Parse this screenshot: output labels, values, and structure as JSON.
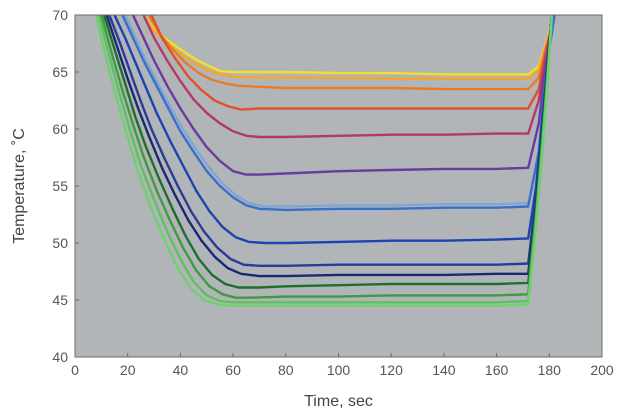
{
  "chart_data": {
    "type": "line",
    "xlabel": "Time, sec",
    "ylabel": "Temperature, ˚C",
    "xlim": [
      0,
      200
    ],
    "ylim": [
      40,
      70
    ],
    "x_ticks": [
      0,
      20,
      40,
      60,
      80,
      100,
      120,
      140,
      160,
      180,
      200
    ],
    "y_ticks": [
      40,
      45,
      50,
      55,
      60,
      65,
      70
    ],
    "grid": false,
    "legend": "none",
    "plot_background": "#b1b5b8",
    "series": [
      {
        "color": "#f2e02a",
        "x": [
          26,
          30,
          35,
          40,
          45,
          50,
          55,
          60,
          70,
          80,
          100,
          120,
          140,
          160,
          172,
          176,
          178,
          180,
          182
        ],
        "y": [
          70,
          68.8,
          67.8,
          67.0,
          66.2,
          65.6,
          65.1,
          65.0,
          65.0,
          65.0,
          64.9,
          64.9,
          64.8,
          64.8,
          64.8,
          65.5,
          67,
          68.5,
          70
        ]
      },
      {
        "color": "#f5a62d",
        "x": [
          26,
          30,
          35,
          40,
          45,
          50,
          55,
          60,
          70,
          80,
          100,
          120,
          140,
          160,
          172,
          176,
          178,
          180,
          182
        ],
        "y": [
          70,
          68.6,
          67.6,
          66.6,
          65.8,
          65.2,
          64.8,
          64.6,
          64.5,
          64.5,
          64.5,
          64.4,
          64.4,
          64.4,
          64.4,
          65.2,
          66.8,
          68.4,
          70
        ]
      },
      {
        "color": "#e87a2a",
        "x": [
          28,
          32,
          37,
          42,
          47,
          52,
          57,
          62,
          70,
          80,
          100,
          120,
          140,
          160,
          172,
          176,
          178,
          180,
          182
        ],
        "y": [
          70,
          68.4,
          67.0,
          65.8,
          64.9,
          64.3,
          64.0,
          63.8,
          63.7,
          63.6,
          63.6,
          63.6,
          63.5,
          63.5,
          63.5,
          64.5,
          66.5,
          68.2,
          70
        ]
      },
      {
        "color": "#e0502a",
        "x": [
          29,
          33,
          38,
          43,
          48,
          53,
          58,
          63,
          70,
          80,
          100,
          120,
          140,
          160,
          172,
          176,
          178,
          180,
          182
        ],
        "y": [
          70,
          68.0,
          66.2,
          64.6,
          63.4,
          62.5,
          62.0,
          61.7,
          61.8,
          61.8,
          61.8,
          61.8,
          61.8,
          61.8,
          61.8,
          63.5,
          66,
          68,
          70
        ]
      },
      {
        "color": "#b03a6a",
        "x": [
          26,
          30,
          35,
          40,
          45,
          50,
          55,
          60,
          65,
          70,
          80,
          100,
          120,
          140,
          160,
          172,
          176,
          178,
          180,
          182
        ],
        "y": [
          70,
          68.0,
          66.0,
          64.2,
          62.6,
          61.4,
          60.5,
          59.8,
          59.4,
          59.3,
          59.3,
          59.4,
          59.5,
          59.5,
          59.6,
          59.6,
          62.5,
          65.5,
          68,
          70
        ]
      },
      {
        "color": "#6a3aa0",
        "x": [
          22,
          26,
          30,
          35,
          40,
          45,
          50,
          55,
          60,
          65,
          70,
          80,
          100,
          120,
          140,
          160,
          172,
          176,
          178,
          180,
          182
        ],
        "y": [
          70,
          68.0,
          66.0,
          63.8,
          61.8,
          60.0,
          58.4,
          57.2,
          56.3,
          56.0,
          56.0,
          56.1,
          56.3,
          56.4,
          56.5,
          56.5,
          56.6,
          60.5,
          64.5,
          67.5,
          70
        ]
      },
      {
        "color": "#7ea6d8",
        "x": [
          19,
          23,
          27,
          31,
          36,
          41,
          46,
          51,
          56,
          61,
          66,
          72,
          80,
          100,
          120,
          140,
          160,
          172,
          176,
          178,
          180,
          182
        ],
        "y": [
          70,
          68.0,
          66.0,
          64.2,
          62.0,
          60.0,
          58.2,
          56.6,
          55.2,
          54.2,
          53.5,
          53.2,
          53.2,
          53.3,
          53.3,
          53.4,
          53.4,
          53.5,
          58,
          63,
          67,
          70
        ]
      },
      {
        "color": "#3a70c8",
        "x": [
          18,
          22,
          26,
          30,
          35,
          40,
          45,
          50,
          55,
          60,
          65,
          70,
          80,
          100,
          120,
          140,
          160,
          172,
          176,
          178,
          180,
          182
        ],
        "y": [
          70,
          68.0,
          66.0,
          64.2,
          62.0,
          59.8,
          58.0,
          56.3,
          55.0,
          54.0,
          53.3,
          53.0,
          52.9,
          53.0,
          53.0,
          53.1,
          53.1,
          53.2,
          58,
          63,
          67,
          70
        ]
      },
      {
        "color": "#1c44b0",
        "x": [
          15,
          19,
          23,
          27,
          31,
          36,
          41,
          46,
          51,
          56,
          61,
          66,
          72,
          80,
          100,
          120,
          140,
          160,
          172,
          175,
          177,
          179,
          181
        ],
        "y": [
          70,
          68.0,
          65.8,
          63.6,
          61.4,
          59.0,
          56.8,
          54.6,
          52.8,
          51.4,
          50.5,
          50.1,
          50.0,
          50.0,
          50.1,
          50.2,
          50.2,
          50.3,
          50.4,
          55,
          60,
          65,
          70
        ]
      },
      {
        "color": "#2a3a98",
        "x": [
          13,
          17,
          21,
          25,
          29,
          34,
          39,
          44,
          49,
          54,
          59,
          64,
          70,
          80,
          100,
          120,
          140,
          160,
          172,
          175,
          177,
          179,
          181
        ],
        "y": [
          70,
          67.6,
          65.0,
          62.4,
          60.0,
          57.4,
          55.0,
          52.8,
          51.0,
          49.6,
          48.6,
          48.1,
          48.0,
          48.0,
          48.1,
          48.1,
          48.1,
          48.1,
          48.2,
          54,
          59,
          65,
          70
        ]
      },
      {
        "color": "#1a2a70",
        "x": [
          12,
          16,
          20,
          24,
          28,
          33,
          38,
          43,
          48,
          53,
          58,
          63,
          70,
          80,
          100,
          120,
          140,
          160,
          172,
          175,
          177,
          179,
          181
        ],
        "y": [
          70,
          67.2,
          64.4,
          61.8,
          59.4,
          56.6,
          54.2,
          52.0,
          50.2,
          48.8,
          47.8,
          47.3,
          47.1,
          47.1,
          47.2,
          47.2,
          47.2,
          47.3,
          47.3,
          53.5,
          59,
          64.5,
          70
        ]
      },
      {
        "color": "#1f6e2e",
        "x": [
          11,
          15,
          19,
          23,
          27,
          32,
          37,
          42,
          47,
          52,
          57,
          62,
          70,
          80,
          100,
          120,
          140,
          160,
          172,
          175,
          177,
          179,
          181
        ],
        "y": [
          70,
          67.0,
          64.0,
          61.0,
          58.4,
          55.6,
          53.0,
          50.6,
          48.6,
          47.2,
          46.4,
          46.1,
          46.1,
          46.2,
          46.3,
          46.4,
          46.4,
          46.4,
          46.5,
          53,
          58.5,
          64,
          70
        ]
      },
      {
        "color": "#3e9c3e",
        "x": [
          10,
          14,
          18,
          22,
          26,
          31,
          36,
          41,
          46,
          51,
          56,
          61,
          66,
          80,
          100,
          120,
          140,
          160,
          172,
          175,
          177,
          179,
          181
        ],
        "y": [
          70,
          66.6,
          63.4,
          60.4,
          57.6,
          54.6,
          52.0,
          49.6,
          47.6,
          46.2,
          45.5,
          45.2,
          45.2,
          45.3,
          45.3,
          45.4,
          45.4,
          45.4,
          45.5,
          52.5,
          58,
          64,
          70
        ]
      },
      {
        "color": "#5cc35c",
        "x": [
          9,
          13,
          17,
          21,
          25,
          30,
          35,
          40,
          45,
          50,
          55,
          60,
          66,
          80,
          100,
          120,
          140,
          160,
          172,
          175,
          177,
          179,
          181
        ],
        "y": [
          70,
          66.4,
          63.0,
          59.8,
          56.8,
          53.8,
          51.0,
          48.6,
          46.6,
          45.4,
          44.9,
          44.8,
          44.8,
          44.8,
          44.8,
          44.8,
          44.8,
          44.8,
          44.9,
          52,
          57.5,
          63.5,
          70
        ]
      },
      {
        "color": "#6fd06f",
        "x": [
          8,
          12,
          16,
          20,
          24,
          29,
          34,
          39,
          44,
          49,
          54,
          59,
          65,
          80,
          100,
          120,
          140,
          160,
          172,
          175,
          177,
          179,
          181
        ],
        "y": [
          70,
          66.0,
          62.5,
          59.2,
          56.2,
          53.0,
          50.2,
          47.8,
          46.0,
          45.0,
          44.6,
          44.5,
          44.5,
          44.5,
          44.5,
          44.5,
          44.5,
          44.5,
          44.6,
          51.5,
          57,
          63,
          70
        ]
      }
    ]
  }
}
